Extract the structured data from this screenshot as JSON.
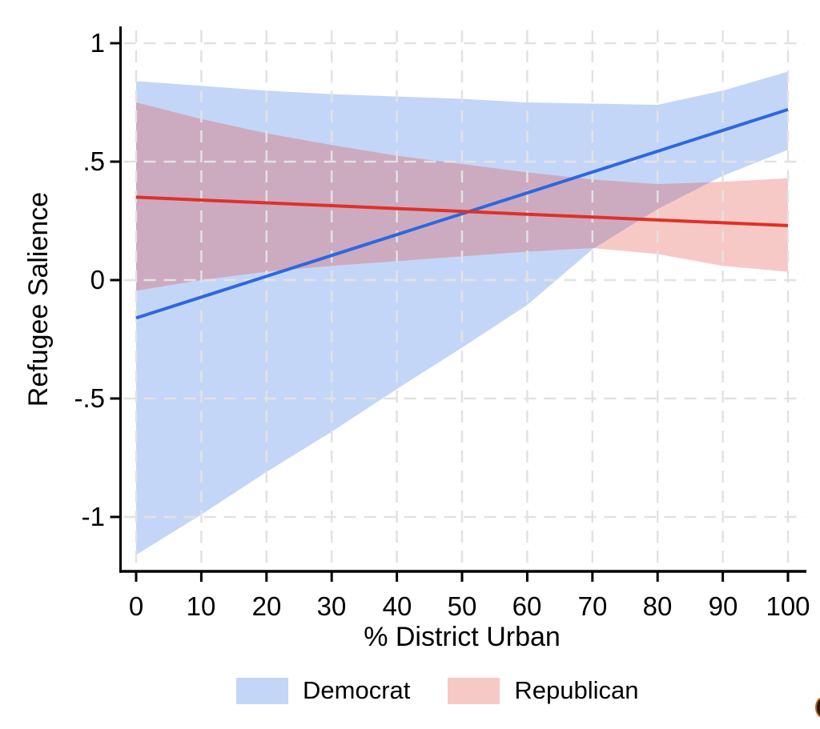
{
  "chart_data": {
    "type": "line",
    "title": "",
    "xlabel": "% District Urban",
    "ylabel": "Refugee Salience",
    "xlim": [
      0,
      100
    ],
    "ylim": [
      -1.23,
      1.07
    ],
    "grid": true,
    "grid_color": "#e2e2e2",
    "axis_color": "#000000",
    "legend_position": "bottom",
    "x_ticks": [
      0,
      10,
      20,
      30,
      40,
      50,
      60,
      70,
      80,
      90,
      100
    ],
    "y_ticks": [
      {
        "v": 1,
        "label": "1"
      },
      {
        "v": 0.5,
        "label": ".5"
      },
      {
        "v": 0,
        "label": "0"
      },
      {
        "v": -0.5,
        "label": "-.5"
      },
      {
        "v": -1,
        "label": "-1"
      }
    ],
    "x": [
      0,
      10,
      20,
      30,
      40,
      50,
      60,
      70,
      80,
      90,
      100
    ],
    "series": [
      {
        "name": "Democrat",
        "line_color": "#2d68de",
        "band_fill": "rgba(60,120,230,0.30)",
        "line": [
          -0.16,
          -0.072,
          0.016,
          0.104,
          0.192,
          0.28,
          0.368,
          0.456,
          0.544,
          0.632,
          0.72
        ],
        "ci_upper": [
          0.84,
          0.82,
          0.8,
          0.785,
          0.775,
          0.765,
          0.75,
          0.745,
          0.74,
          0.8,
          0.88
        ],
        "ci_lower": [
          -1.16,
          -0.99,
          -0.81,
          -0.64,
          -0.46,
          -0.285,
          -0.105,
          0.13,
          0.3,
          0.44,
          0.55
        ]
      },
      {
        "name": "Republican",
        "line_color": "#e03026",
        "band_fill": "rgba(228,60,50,0.28)",
        "line": [
          0.35,
          0.338,
          0.326,
          0.314,
          0.302,
          0.29,
          0.278,
          0.266,
          0.254,
          0.242,
          0.23
        ],
        "ci_upper": [
          0.75,
          0.68,
          0.62,
          0.57,
          0.525,
          0.49,
          0.455,
          0.425,
          0.405,
          0.415,
          0.43
        ],
        "ci_lower": [
          -0.045,
          0.0,
          0.035,
          0.06,
          0.08,
          0.1,
          0.12,
          0.135,
          0.11,
          0.06,
          0.035
        ]
      }
    ]
  }
}
